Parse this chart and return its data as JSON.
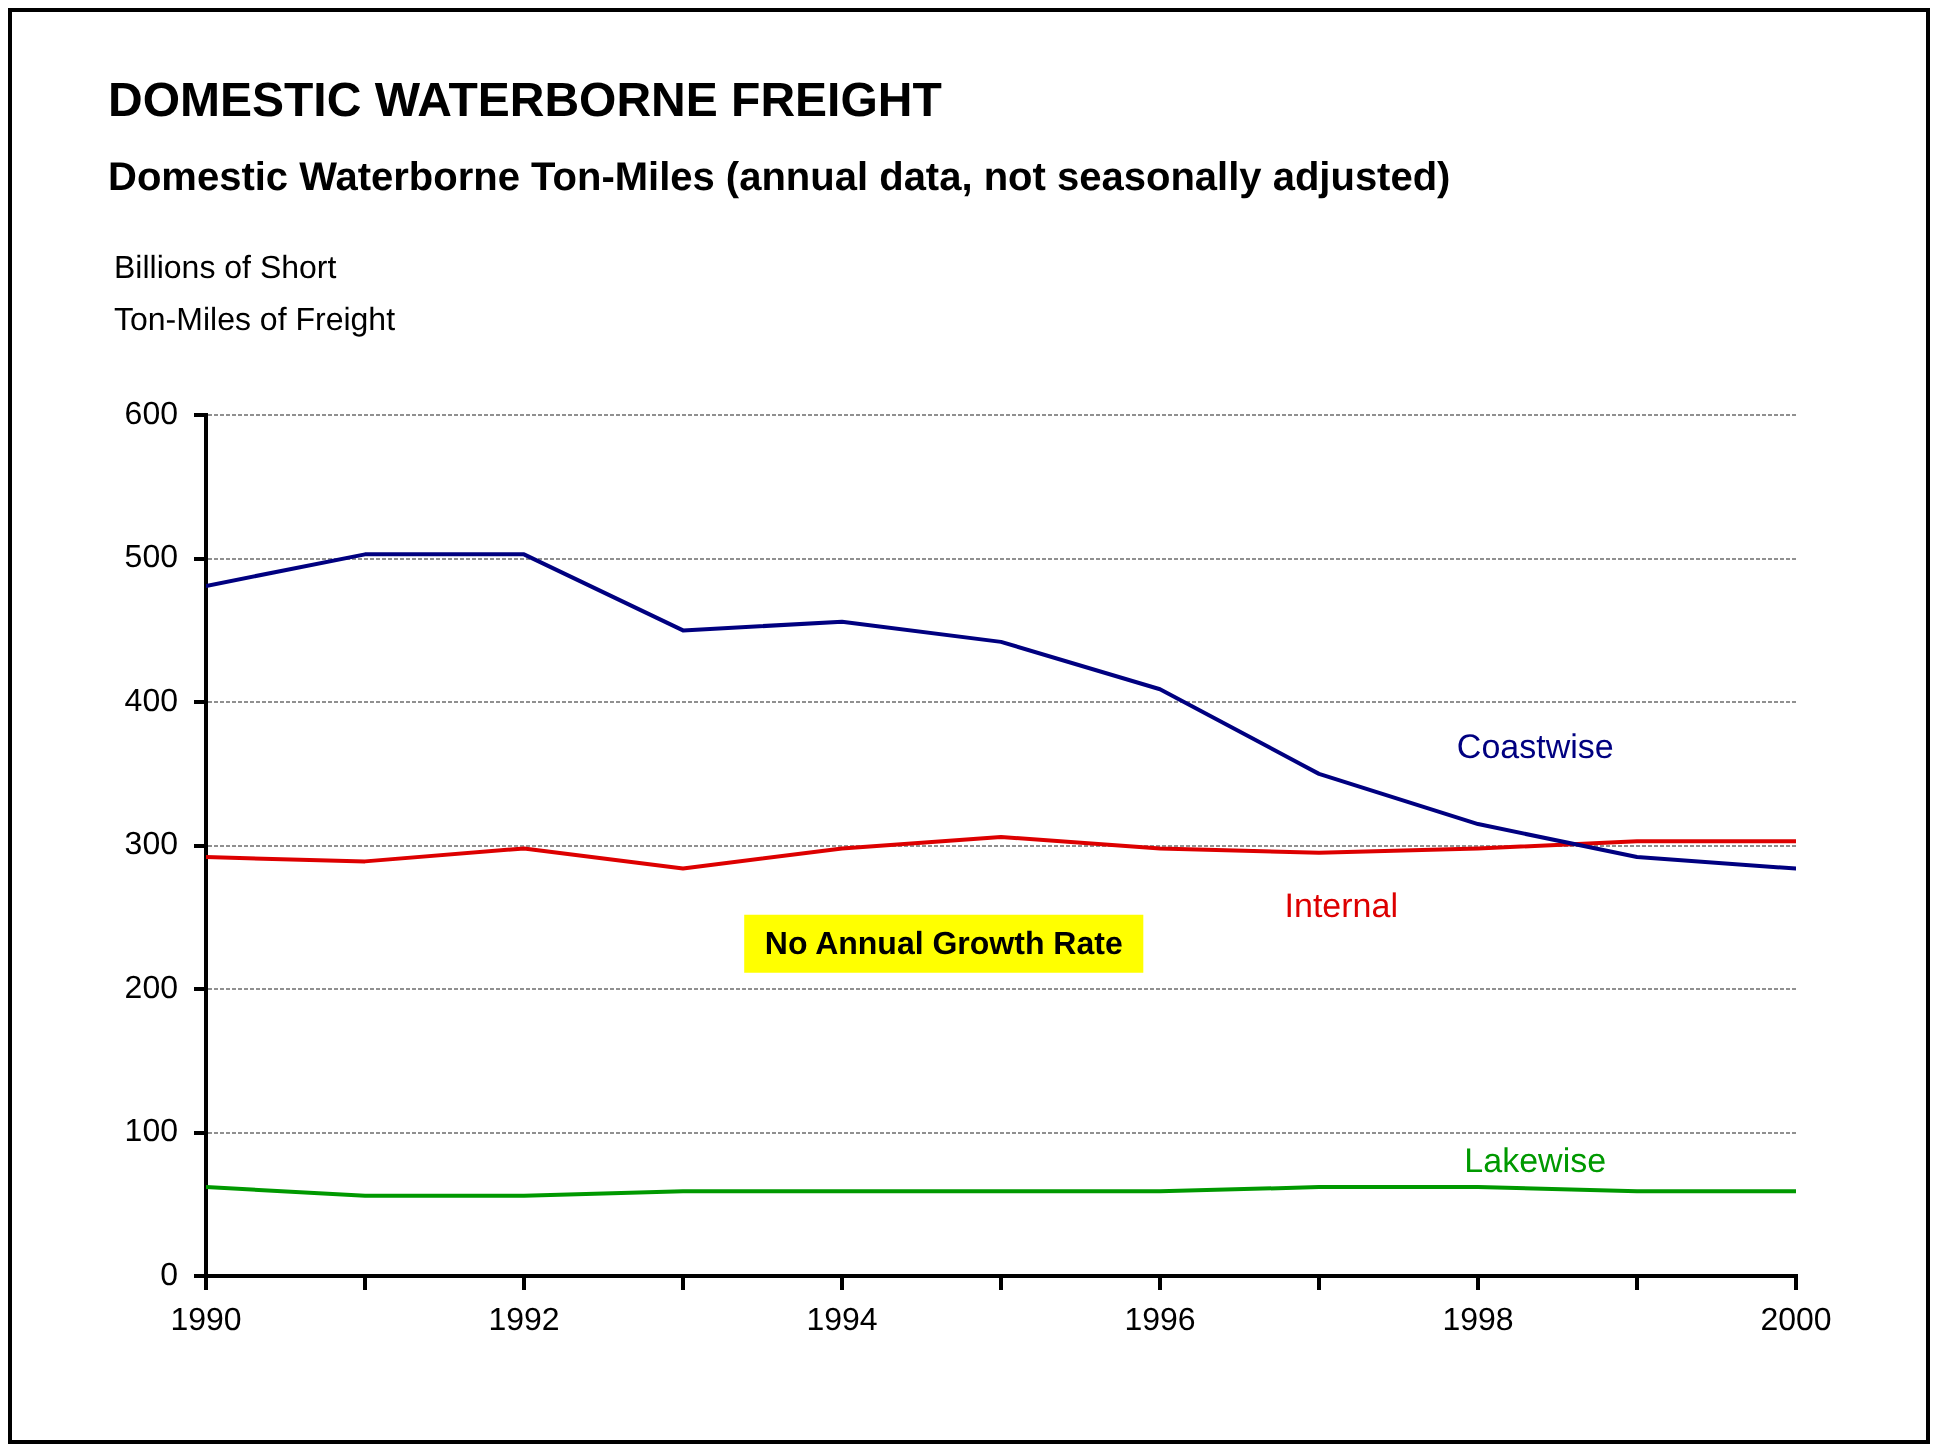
{
  "chart_data": {
    "type": "line",
    "title": "DOMESTIC WATERBORNE FREIGHT",
    "subtitle": "Domestic Waterborne Ton-Miles (annual data, not seasonally adjusted)",
    "ylabel": "Billions of Short Ton-Miles of Freight",
    "x": [
      1990,
      1991,
      1992,
      1993,
      1994,
      1995,
      1996,
      1997,
      1998,
      1999,
      2000
    ],
    "series": [
      {
        "name": "Coastwise",
        "color": "#000080",
        "values": [
          481,
          503,
          503,
          450,
          456,
          442,
          409,
          350,
          315,
          292,
          284
        ]
      },
      {
        "name": "Internal",
        "color": "#dd0000",
        "values": [
          292,
          289,
          298,
          284,
          298,
          306,
          298,
          295,
          298,
          303,
          303
        ]
      },
      {
        "name": "Lakewise",
        "color": "#009900",
        "values": [
          62,
          56,
          56,
          59,
          59,
          59,
          59,
          62,
          62,
          59,
          59
        ]
      }
    ],
    "xlim": [
      1990,
      2000
    ],
    "xticks": [
      1990,
      {
        "value": 1991,
        "label": null
      },
      1992,
      {
        "value": 1993,
        "label": null
      },
      1994,
      {
        "value": 1995,
        "label": null
      },
      1996,
      {
        "value": 1997,
        "label": null
      },
      1998,
      {
        "value": 1999,
        "label": null
      },
      2000
    ],
    "ylim": [
      0,
      600
    ],
    "yticks": [
      0,
      100,
      200,
      300,
      400,
      500,
      600
    ],
    "annotations": [
      "No Annual Growth Rate"
    ],
    "grid": "y",
    "marker": "none",
    "line_style": "solid"
  }
}
